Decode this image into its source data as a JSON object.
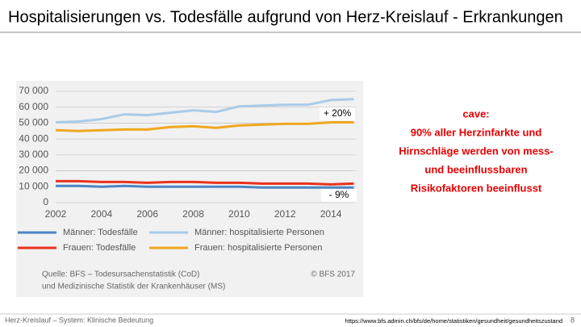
{
  "slide_title": "Hospitalisierungen vs. Todesfälle aufgrund von Herz-Kreislauf - Erkrankungen",
  "chart_data": {
    "type": "line",
    "x": [
      2002,
      2003,
      2004,
      2005,
      2006,
      2007,
      2008,
      2009,
      2010,
      2011,
      2012,
      2013,
      2014,
      2015
    ],
    "series": [
      {
        "name": "Männer: Todesfälle",
        "color": "#4a86c5",
        "values": [
          10500,
          10500,
          10000,
          10500,
          10000,
          10000,
          10000,
          10000,
          10000,
          9500,
          9500,
          9500,
          9500,
          9500
        ]
      },
      {
        "name": "Männer: hospitalisierte Personen",
        "color": "#a9cbe8",
        "values": [
          50500,
          51000,
          52500,
          55500,
          55000,
          56500,
          58000,
          57000,
          60500,
          61000,
          61500,
          61500,
          64500,
          65000
        ]
      },
      {
        "name": "Frauen: Todesfälle",
        "color": "#e8321c",
        "values": [
          13500,
          13500,
          13000,
          13000,
          12500,
          13000,
          13000,
          12500,
          12500,
          12000,
          12000,
          12000,
          11500,
          12000
        ]
      },
      {
        "name": "Frauen: hospitalisierte Personen",
        "color": "#f0a820",
        "values": [
          45500,
          45000,
          45500,
          46000,
          46000,
          47500,
          48000,
          47000,
          48500,
          49000,
          49500,
          49500,
          50500,
          50500
        ]
      }
    ],
    "xlim": [
      2002,
      2015
    ],
    "xticks": [
      2002,
      2004,
      2006,
      2008,
      2010,
      2012,
      2014
    ],
    "ylim": [
      0,
      70000
    ],
    "yticks": [
      0,
      {
        "value": 10000,
        "label": "10 000"
      },
      {
        "value": 20000,
        "label": "20 000"
      },
      {
        "value": 30000,
        "label": "30 000"
      },
      {
        "value": 40000,
        "label": "40 000"
      },
      {
        "value": 50000,
        "label": "50 000"
      },
      {
        "value": 60000,
        "label": "60 000"
      },
      {
        "value": 70000,
        "label": "70 000"
      }
    ],
    "grid": true,
    "annotations": [
      "+ 20%",
      "- 9%"
    ],
    "source": [
      "Quelle: BFS – Todesursachenstatistik (CoD)",
      "und Medizinische Statistik der Krankenhäuser (MS)"
    ],
    "copyright": "© BFS 2017"
  },
  "note": [
    "cave:",
    "90% aller Herzinfarkte und",
    "Hirnschläge werden von mess-",
    "und beeinflussbaren",
    "Risikofaktoren beeinflusst"
  ],
  "footer": {
    "left": "Herz-Kreislauf – System:  Klinische Bedeutung",
    "url": "https://www.bfs.admin.ch/bfs/de/home/statistiken/gesundheit/gesundheitszustand",
    "page": "8"
  }
}
